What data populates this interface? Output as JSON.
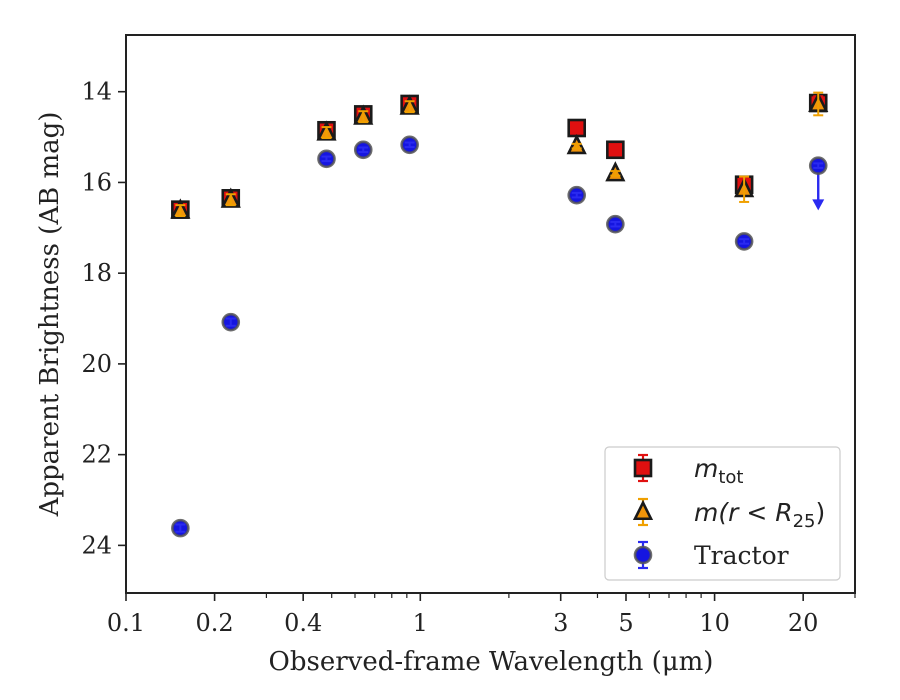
{
  "chart_data": {
    "type": "scatter",
    "title": "",
    "xlabel": "Observed-frame Wavelength (μm)",
    "ylabel": "Apparent Brightness (AB mag)",
    "x_scale": "log",
    "xlim": [
      0.1,
      30
    ],
    "ylim": [
      25.05,
      12.75
    ],
    "y_inverted": true,
    "grid": false,
    "legend_position": "lower-right",
    "x_ticks": [
      {
        "value": 0.1,
        "label": "0.1"
      },
      {
        "value": 0.2,
        "label": "0.2"
      },
      {
        "value": 0.4,
        "label": "0.4"
      },
      {
        "value": 1,
        "label": "1"
      },
      {
        "value": 3,
        "label": "3"
      },
      {
        "value": 5,
        "label": "5"
      },
      {
        "value": 10,
        "label": "10"
      },
      {
        "value": 20,
        "label": "20"
      }
    ],
    "y_ticks": [
      {
        "value": 14,
        "label": "14"
      },
      {
        "value": 16,
        "label": "16"
      },
      {
        "value": 18,
        "label": "18"
      },
      {
        "value": 20,
        "label": "20"
      },
      {
        "value": 22,
        "label": "22"
      },
      {
        "value": 24,
        "label": "24"
      }
    ],
    "series": [
      {
        "name": "m_tot",
        "legend_label": {
          "base": "m",
          "sub": "tot"
        },
        "marker": "square",
        "face_color": "#e01010",
        "edge_color": "#1a1a1a",
        "errorbar_color": "#e01010",
        "points": [
          {
            "x": 0.153,
            "y": 16.6,
            "err": 0.12
          },
          {
            "x": 0.227,
            "y": 16.35,
            "err": 0.12
          },
          {
            "x": 0.48,
            "y": 14.85,
            "err": 0.12
          },
          {
            "x": 0.64,
            "y": 14.5,
            "err": 0.12
          },
          {
            "x": 0.92,
            "y": 14.27,
            "err": 0.12
          },
          {
            "x": 3.4,
            "y": 14.8,
            "err": 0.05
          },
          {
            "x": 4.6,
            "y": 15.28,
            "err": 0.05
          },
          {
            "x": 12.6,
            "y": 16.05,
            "err": 0.15
          },
          {
            "x": 22.5,
            "y": 14.25,
            "err": 0.15
          }
        ]
      },
      {
        "name": "m(r < R25)",
        "legend_label": {
          "base": "m(r < R",
          "sub": "25",
          "suffix": ")"
        },
        "marker": "triangle",
        "face_color": "#f0940a",
        "edge_color": "#1a1a1a",
        "errorbar_color": "#f0a000",
        "points": [
          {
            "x": 0.153,
            "y": 16.62,
            "err": 0.12
          },
          {
            "x": 0.227,
            "y": 16.38,
            "err": 0.12
          },
          {
            "x": 0.48,
            "y": 14.9,
            "err": 0.12
          },
          {
            "x": 0.64,
            "y": 14.55,
            "err": 0.12
          },
          {
            "x": 0.92,
            "y": 14.33,
            "err": 0.12
          },
          {
            "x": 3.4,
            "y": 15.2,
            "err": 0.05
          },
          {
            "x": 4.6,
            "y": 15.8,
            "err": 0.05
          },
          {
            "x": 12.6,
            "y": 16.15,
            "err": 0.28
          },
          {
            "x": 22.5,
            "y": 14.27,
            "err": 0.25
          }
        ]
      },
      {
        "name": "Tractor",
        "marker": "circle",
        "face_color": "#1515e0",
        "edge_color": "#555555",
        "errorbar_color": "#2a2af0",
        "points": [
          {
            "x": 0.153,
            "y": 23.62,
            "err": 0.08
          },
          {
            "x": 0.227,
            "y": 19.08,
            "err": 0.08
          },
          {
            "x": 0.48,
            "y": 15.48,
            "err": 0.05
          },
          {
            "x": 0.64,
            "y": 15.28,
            "err": 0.05
          },
          {
            "x": 0.92,
            "y": 15.17,
            "err": 0.05
          },
          {
            "x": 3.4,
            "y": 16.28,
            "err": 0.05
          },
          {
            "x": 4.6,
            "y": 16.92,
            "err": 0.05
          },
          {
            "x": 12.6,
            "y": 17.3,
            "err": 0.05
          },
          {
            "x": 22.5,
            "y": 15.63,
            "err": 0.05,
            "upper_limit": true,
            "arrow_to": 16.55
          }
        ]
      }
    ]
  }
}
